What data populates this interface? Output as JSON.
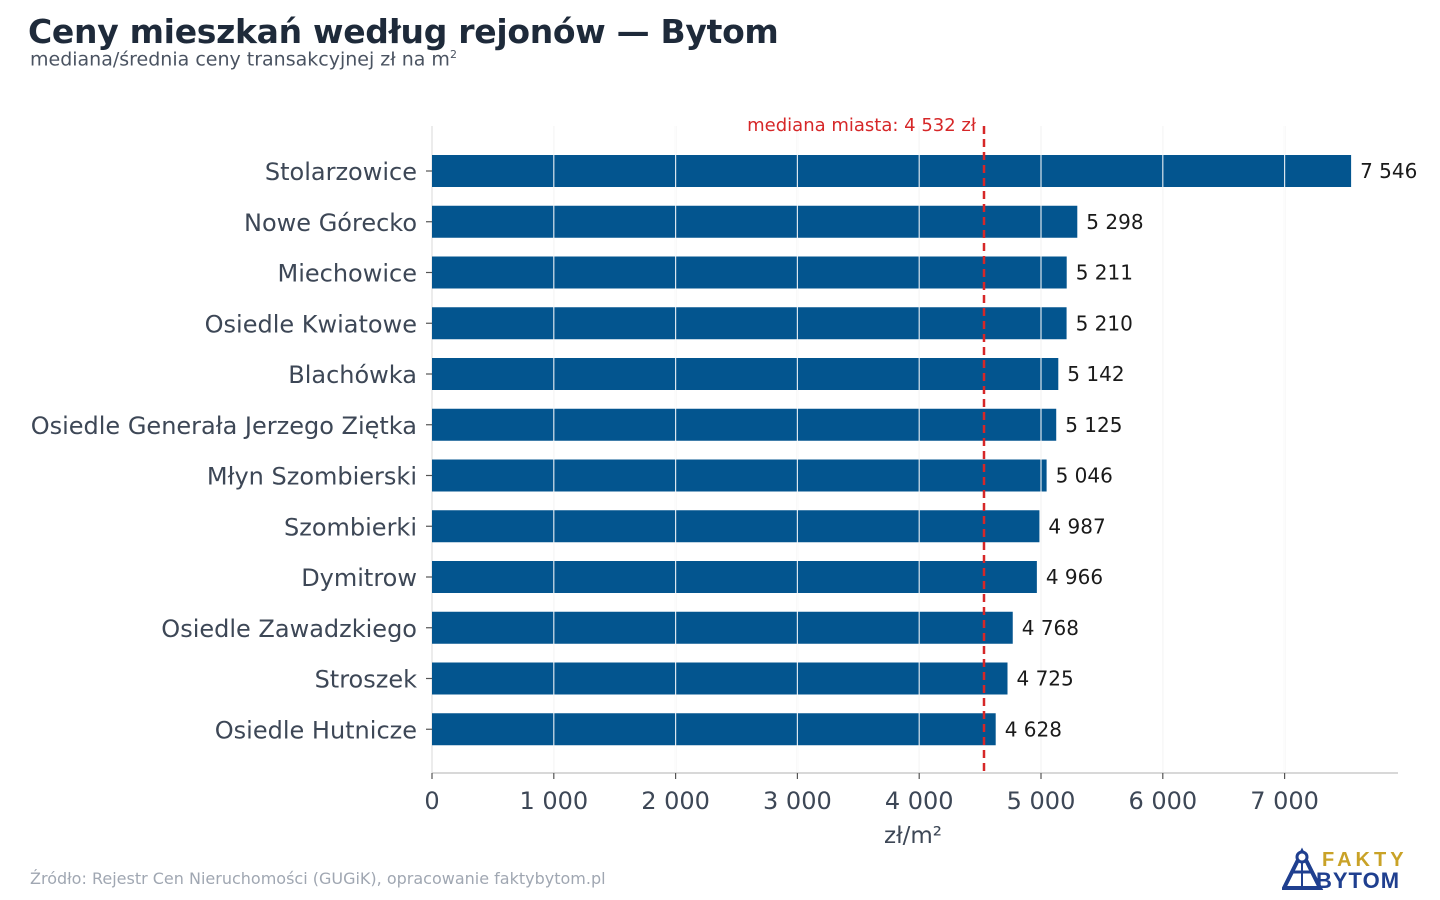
{
  "header": {
    "title": "Ceny mieszkań według rejonów — Bytom",
    "subtitle_main": "mediana/średnia ceny transakcyjnej zł na m",
    "subtitle_sup": "2"
  },
  "footer": {
    "source": "Źródło: Rejestr Cen Nieruchomości (GUGiK), opracowanie faktybytom.pl"
  },
  "logo": {
    "icon": "mine-shaft-icon",
    "line1": "FAKTY",
    "line2": "BYTOM",
    "color1": "#c9a227",
    "color2": "#1f3f8f"
  },
  "colors": {
    "bar": "#03558f",
    "reference": "#d62728",
    "grid": "#e6e6e6"
  },
  "chart_data": {
    "type": "bar",
    "orientation": "horizontal",
    "categories": [
      "Stolarzowice",
      "Nowe Górecko",
      "Miechowice",
      "Osiedle Kwiatowe",
      "Blachówka",
      "Osiedle Generała Jerzego Ziętka",
      "Młyn Szombierski",
      "Szombierki",
      "Dymitrow",
      "Osiedle Zawadzkiego",
      "Stroszek",
      "Osiedle Hutnicze"
    ],
    "values": [
      7546,
      5298,
      5211,
      5210,
      5142,
      5125,
      5046,
      4987,
      4966,
      4768,
      4725,
      4628
    ],
    "value_labels": [
      "7 546",
      "5 298",
      "5 211",
      "5 210",
      "5 142",
      "5 125",
      "5 046",
      "4 987",
      "4 966",
      "4 768",
      "4 725",
      "4 628"
    ],
    "xlabel": "zł/m²",
    "ylabel": "",
    "xlim": [
      0,
      7900
    ],
    "xticks": [
      0,
      1000,
      2000,
      3000,
      4000,
      5000,
      6000,
      7000
    ],
    "xtick_labels": [
      "0",
      "1 000",
      "2 000",
      "3 000",
      "4 000",
      "5 000",
      "6 000",
      "7 000"
    ],
    "grid": true,
    "reference_line": {
      "value": 4532,
      "label": "mediana miasta: 4 532 zł",
      "style": "dashed"
    }
  }
}
